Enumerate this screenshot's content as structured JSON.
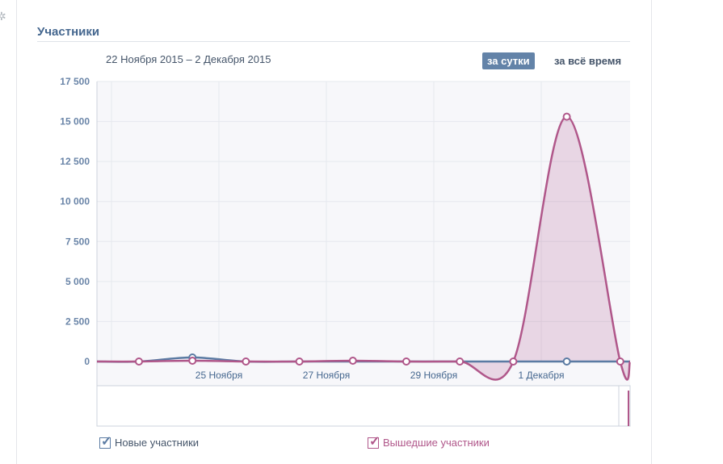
{
  "title": "Участники",
  "date_range": "22 Ноября 2015 – 2 Декабря 2015",
  "buttons": {
    "daily": "за сутки",
    "all_time": "за всё время"
  },
  "legend": {
    "new": "Новые участники",
    "left": "Вышедшие участники"
  },
  "chart_data": {
    "type": "area",
    "title": "Участники",
    "ylim": [
      0,
      17500
    ],
    "yticks": [
      "17 500",
      "15 000",
      "12 500",
      "10 000",
      "7 500",
      "5 000",
      "2 500",
      "0"
    ],
    "ytick_values": [
      17500,
      15000,
      12500,
      10000,
      7500,
      5000,
      2500,
      0
    ],
    "xtick_labels": [
      "25 Ноября",
      "27 Ноября",
      "29 Ноября",
      "1 Декабря"
    ],
    "x": [
      "23.11",
      "24.11",
      "25.11",
      "26.11",
      "27.11",
      "28.11",
      "29.11",
      "30.11",
      "1.12",
      "2.12"
    ],
    "series": [
      {
        "name": "Новые участники",
        "color": "#5b7ba3",
        "values": [
          0,
          250,
          0,
          0,
          0,
          0,
          0,
          0,
          0,
          0
        ]
      },
      {
        "name": "Вышедшие участники",
        "color": "#b0578a",
        "values": [
          0,
          50,
          0,
          0,
          50,
          0,
          0,
          0,
          15300,
          0
        ]
      }
    ],
    "grid": true,
    "legend": "bottom"
  }
}
